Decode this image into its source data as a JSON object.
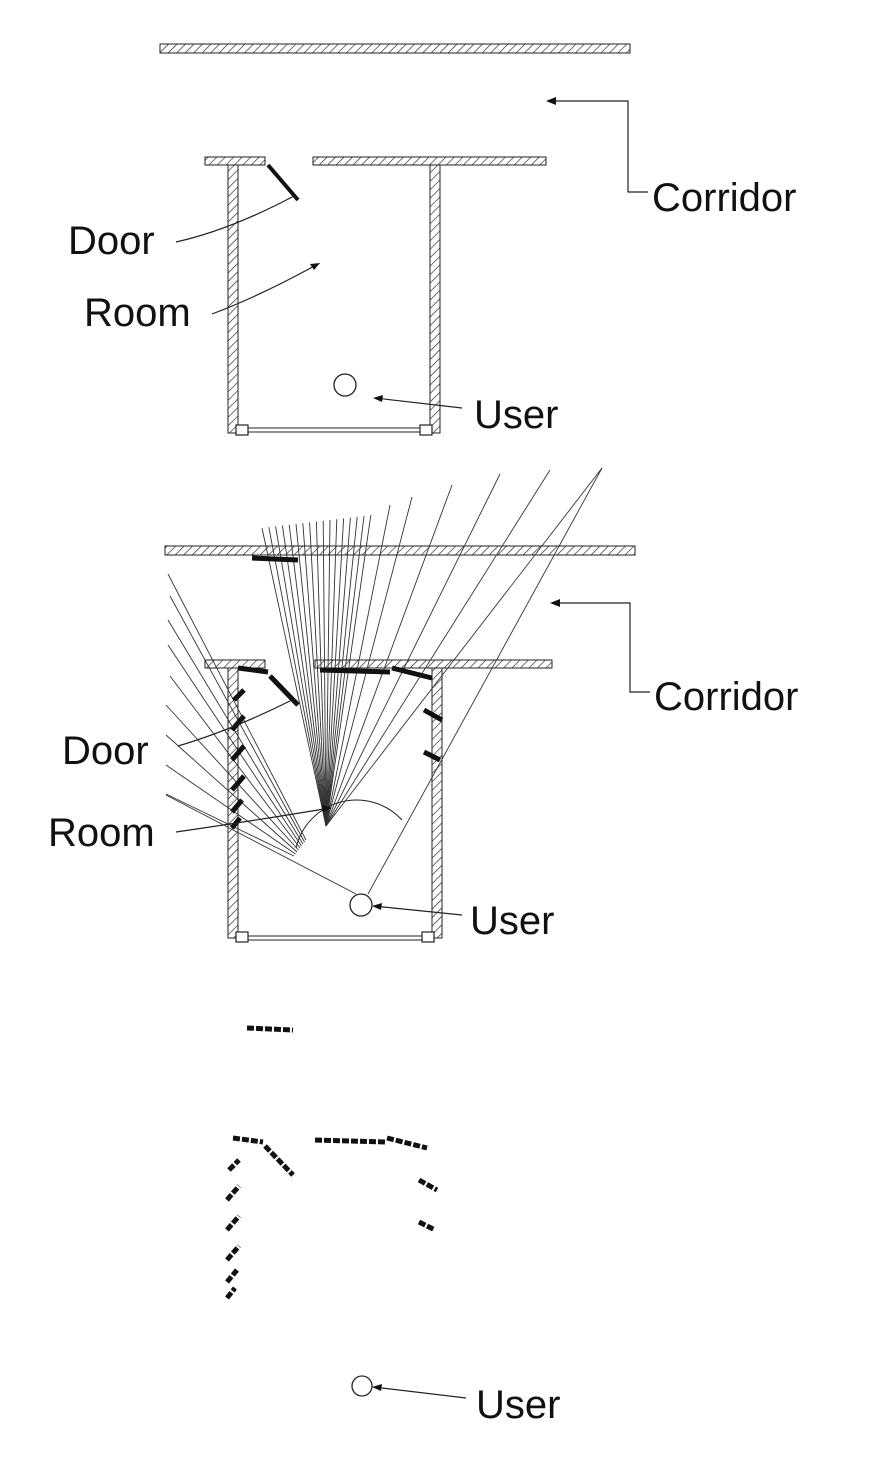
{
  "panels": [
    {
      "id": "floor-plan",
      "labels": {
        "corridor": "Corridor",
        "door": "Door",
        "room": "Room",
        "user": "User"
      }
    },
    {
      "id": "laser-scan",
      "labels": {
        "corridor": "Corridor",
        "door": "Door",
        "room": "Room",
        "user": "User"
      }
    },
    {
      "id": "scan-points",
      "labels": {
        "user": "User"
      }
    }
  ],
  "colors": {
    "ink": "#111111",
    "background": "#ffffff"
  }
}
